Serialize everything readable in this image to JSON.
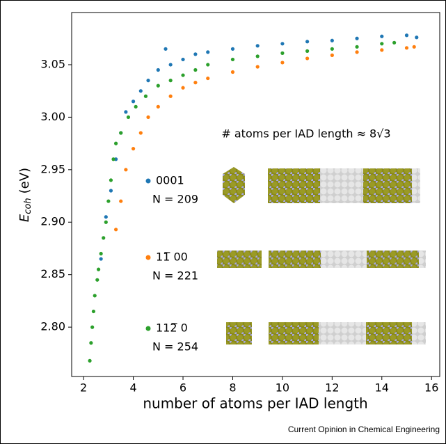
{
  "chart_data": {
    "type": "scatter",
    "xlabel": "number of atoms per IAD length",
    "ylabel": {
      "symbol": "E",
      "subscript": "coh",
      "unit": "(eV)"
    },
    "annotation": "# atoms per IAD length ≈ 8√3",
    "source": "Current Opinion in Chemical Engineering",
    "xlim": [
      1.52,
      16.33
    ],
    "ylim": [
      2.753,
      3.0997
    ],
    "xticks": [
      2,
      4,
      6,
      8,
      10,
      12,
      14,
      16
    ],
    "yticks": [
      {
        "value": 2.8,
        "label": "2.80"
      },
      {
        "value": 2.85,
        "label": "2.85"
      },
      {
        "value": 2.9,
        "label": "2.90"
      },
      {
        "value": 2.95,
        "label": "2.95"
      },
      {
        "value": 3.0,
        "label": "3.00"
      },
      {
        "value": 3.05,
        "label": "3.05"
      }
    ],
    "series": [
      {
        "name": "0001",
        "note": "N = 209",
        "color": "#1f77b4",
        "x": [
          2.7,
          2.9,
          3.1,
          3.3,
          3.5,
          3.7,
          4.0,
          4.3,
          4.6,
          5.0,
          5.3,
          5.5,
          6.0,
          6.5,
          7.0,
          8.0,
          9.0,
          10.0,
          11.0,
          12.0,
          13.0,
          14.0,
          15.0,
          15.4
        ],
        "values": [
          2.865,
          2.905,
          2.93,
          2.96,
          2.985,
          3.005,
          3.015,
          3.025,
          3.035,
          3.045,
          3.065,
          3.05,
          3.055,
          3.06,
          3.062,
          3.065,
          3.068,
          3.07,
          3.072,
          3.073,
          3.075,
          3.077,
          3.078,
          3.076
        ]
      },
      {
        "name": "11̅ 00",
        "note": "N = 221",
        "color": "#ff7f0e",
        "x": [
          3.3,
          3.5,
          3.7,
          4.0,
          4.3,
          4.6,
          5.0,
          5.5,
          6.0,
          6.5,
          7.0,
          8.0,
          9.0,
          10.0,
          11.0,
          12.0,
          13.0,
          14.0,
          15.0,
          15.3
        ],
        "values": [
          2.893,
          2.92,
          2.95,
          2.97,
          2.985,
          3.0,
          3.01,
          3.02,
          3.028,
          3.033,
          3.037,
          3.043,
          3.048,
          3.052,
          3.056,
          3.059,
          3.062,
          3.064,
          3.066,
          3.067
        ]
      },
      {
        "name": "112̅ 0",
        "note": "N = 254",
        "color": "#2ca02c",
        "x": [
          2.25,
          2.3,
          2.35,
          2.4,
          2.45,
          2.55,
          2.6,
          2.7,
          2.8,
          2.9,
          3.0,
          3.1,
          3.2,
          3.3,
          3.5,
          3.8,
          4.1,
          4.5,
          5.0,
          5.5,
          6.0,
          6.5,
          7.0,
          8.0,
          9.0,
          10.0,
          11.0,
          12.0,
          13.0,
          14.0,
          14.5
        ],
        "values": [
          2.768,
          2.785,
          2.8,
          2.815,
          2.83,
          2.845,
          2.855,
          2.87,
          2.885,
          2.9,
          2.92,
          2.94,
          2.96,
          2.975,
          2.985,
          3.0,
          3.01,
          3.02,
          3.03,
          3.035,
          3.04,
          3.045,
          3.05,
          3.055,
          3.058,
          3.061,
          3.063,
          3.065,
          3.067,
          3.07,
          3.071
        ]
      }
    ]
  }
}
